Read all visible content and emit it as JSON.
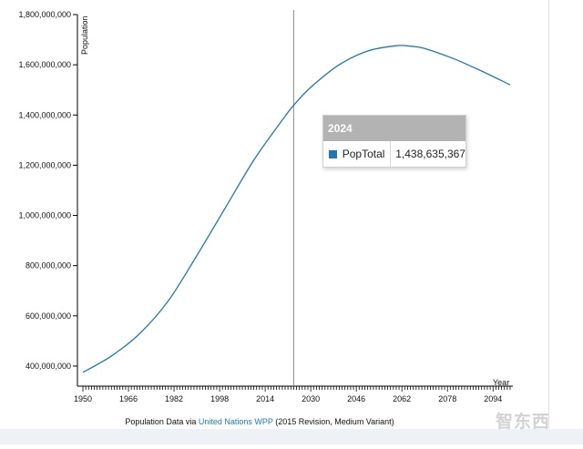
{
  "chart_data": {
    "type": "line",
    "ylabel": "Population",
    "xlabel": "Year",
    "y_ticks": [
      "400,000,000",
      "600,000,000",
      "800,000,000",
      "1,000,000,000",
      "1,200,000,000",
      "1,400,000,000",
      "1,600,000,000",
      "1,800,000,000"
    ],
    "y_tick_values": [
      400000000,
      600000000,
      800000000,
      1000000000,
      1200000000,
      1400000000,
      1600000000,
      1800000000
    ],
    "ylim": [
      320000000,
      1800000000
    ],
    "xlim": [
      1950,
      2100
    ],
    "x_ticks": [
      "1950",
      "1966",
      "1982",
      "1998",
      "2014",
      "2030",
      "2046",
      "2062",
      "2078",
      "2094"
    ],
    "x_tick_values": [
      1950,
      1966,
      1982,
      1998,
      2014,
      2030,
      2046,
      2062,
      2078,
      2094
    ],
    "series": [
      {
        "name": "PopTotal",
        "color": "#1f77b4",
        "x": [
          1950,
          1960,
          1970,
          1980,
          1990,
          2000,
          2010,
          2020,
          2024,
          2030,
          2040,
          2050,
          2060,
          2065,
          2070,
          2080,
          2090,
          2100
        ],
        "values": [
          375000000,
          440000000,
          530000000,
          660000000,
          840000000,
          1030000000,
          1220000000,
          1380000000,
          1438635367,
          1510000000,
          1600000000,
          1655000000,
          1676000000,
          1674000000,
          1665000000,
          1625000000,
          1575000000,
          1520000000
        ]
      }
    ],
    "hover_year": 2024
  },
  "tooltip": {
    "title": "2024",
    "series_name": "PopTotal",
    "value": "1,438,635,367"
  },
  "caption": {
    "prefix": "Population Data via ",
    "link": "United Nations WPP",
    "suffix": " (2015 Revision, Medium Variant)"
  }
}
